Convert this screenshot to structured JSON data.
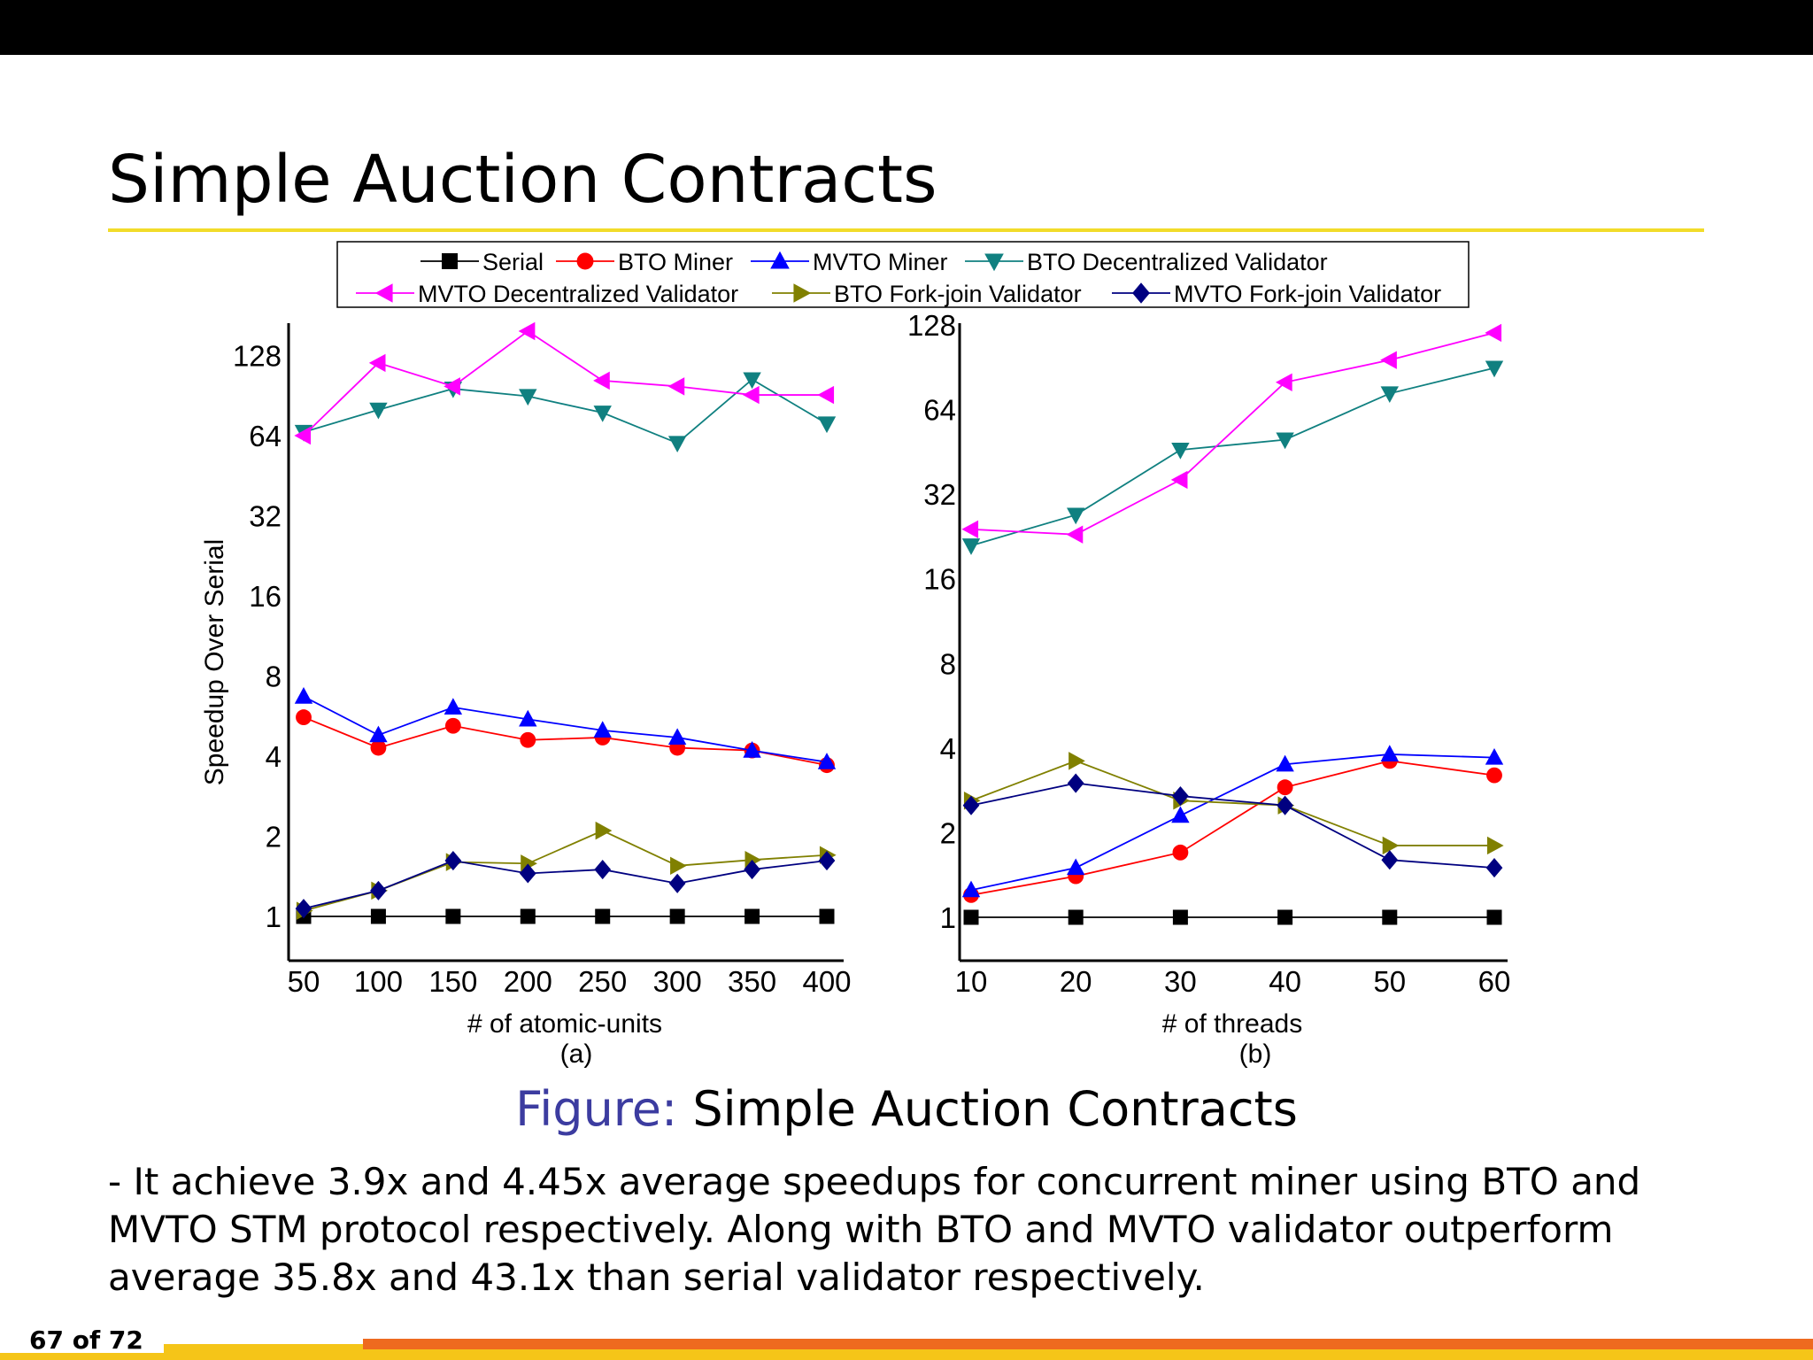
{
  "slide": {
    "title": "Simple Auction Contracts",
    "caption_label": "Figure:",
    "caption_text": " Simple Auction Contracts",
    "body": "- It achieve 3.9x and 4.45x average speedups for concurrent miner using BTO and MVTO STM protocol respectively. Along with BTO and MVTO validator outperform average 35.8x and 43.1x than serial validator respectively.",
    "page": "67 of 72"
  },
  "chart_data": [
    {
      "type": "line",
      "sublabel": "(a)",
      "xlabel": "# of atomic-units",
      "ylabel": "Speedup Over Serial",
      "x": [
        50,
        100,
        150,
        200,
        250,
        300,
        350,
        400
      ],
      "xticks": [
        "50",
        "100",
        "150",
        "200",
        "250",
        "300",
        "350",
        "400"
      ],
      "yscale": "log2",
      "yticks": [
        1,
        2,
        4,
        8,
        16,
        32,
        64,
        128
      ],
      "ylim": [
        0.75,
        190
      ],
      "series": [
        {
          "name": "Serial",
          "color": "#000000",
          "marker": "square",
          "values": [
            1,
            1,
            1,
            1,
            1,
            1,
            1,
            1
          ]
        },
        {
          "name": "BTO Miner",
          "color": "#ff0000",
          "marker": "circle",
          "values": [
            5.6,
            4.3,
            5.2,
            4.6,
            4.7,
            4.3,
            4.2,
            3.7
          ]
        },
        {
          "name": "MVTO Miner",
          "color": "#0000ff",
          "marker": "triangle-up",
          "values": [
            6.7,
            4.8,
            6.1,
            5.5,
            5.0,
            4.7,
            4.2,
            3.8
          ]
        },
        {
          "name": "BTO Decentralized Validator",
          "color": "#108080",
          "marker": "triangle-down",
          "values": [
            66,
            80,
            96,
            90,
            78,
            60,
            104,
            71
          ]
        },
        {
          "name": "MVTO Decentralized Validator",
          "color": "#ff00ff",
          "marker": "triangle-left",
          "values": [
            64,
            120,
            98,
            158,
            103,
            98,
            91,
            91
          ]
        },
        {
          "name": "BTO Fork-join Validator",
          "color": "#808000",
          "marker": "triangle-right",
          "values": [
            1.05,
            1.25,
            1.6,
            1.58,
            2.1,
            1.55,
            1.63,
            1.7
          ]
        },
        {
          "name": "MVTO Fork-join Validator",
          "color": "#000080",
          "marker": "diamond",
          "values": [
            1.07,
            1.25,
            1.62,
            1.45,
            1.5,
            1.33,
            1.5,
            1.62
          ]
        }
      ]
    },
    {
      "type": "line",
      "sublabel": "(b)",
      "xlabel": "# of threads",
      "ylabel": "",
      "x": [
        10,
        20,
        30,
        40,
        50,
        60
      ],
      "xticks": [
        "10",
        "20",
        "30",
        "40",
        "50",
        "60"
      ],
      "yscale": "log2",
      "yticks": [
        1,
        2,
        4,
        8,
        16,
        32,
        64,
        128
      ],
      "ylim": [
        0.8,
        128
      ],
      "series": [
        {
          "name": "Serial",
          "color": "#000000",
          "marker": "square",
          "values": [
            1,
            1,
            1,
            1,
            1,
            1
          ]
        },
        {
          "name": "BTO Miner",
          "color": "#ff0000",
          "marker": "circle",
          "values": [
            1.2,
            1.4,
            1.7,
            2.9,
            3.6,
            3.2
          ]
        },
        {
          "name": "MVTO Miner",
          "color": "#0000ff",
          "marker": "triangle-up",
          "values": [
            1.25,
            1.5,
            2.3,
            3.5,
            3.8,
            3.7
          ]
        },
        {
          "name": "BTO Decentralized Validator",
          "color": "#108080",
          "marker": "triangle-down",
          "values": [
            21,
            27,
            46,
            50,
            73,
            90
          ]
        },
        {
          "name": "MVTO Decentralized Validator",
          "color": "#ff00ff",
          "marker": "triangle-left",
          "values": [
            24,
            23,
            36,
            80,
            96,
            120
          ]
        },
        {
          "name": "BTO Fork-join Validator",
          "color": "#808000",
          "marker": "triangle-right",
          "values": [
            2.6,
            3.6,
            2.6,
            2.5,
            1.8,
            1.8
          ]
        },
        {
          "name": "MVTO Fork-join Validator",
          "color": "#000080",
          "marker": "diamond",
          "values": [
            2.5,
            3.0,
            2.7,
            2.5,
            1.6,
            1.5
          ]
        }
      ]
    }
  ]
}
